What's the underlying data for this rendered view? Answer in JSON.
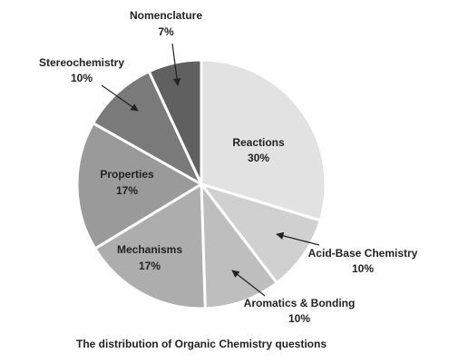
{
  "chart_data": {
    "type": "pie",
    "caption": "The distribution of Organic Chemistry questions",
    "categories": [
      "Reactions",
      "Acid-Base Chemistry",
      "Aromatics & Bonding",
      "Mechanisms",
      "Properties",
      "Stereochemistry",
      "Nomenclature"
    ],
    "values": [
      30,
      10,
      10,
      17,
      17,
      10,
      7
    ],
    "value_labels": [
      "30%",
      "10%",
      "10%",
      "17%",
      "17%",
      "10%",
      "7%"
    ],
    "colors": [
      "#e2e2e2",
      "#d0d0d0",
      "#bebebe",
      "#adadad",
      "#9a9a9a",
      "#7a7a7a",
      "#606060"
    ]
  }
}
